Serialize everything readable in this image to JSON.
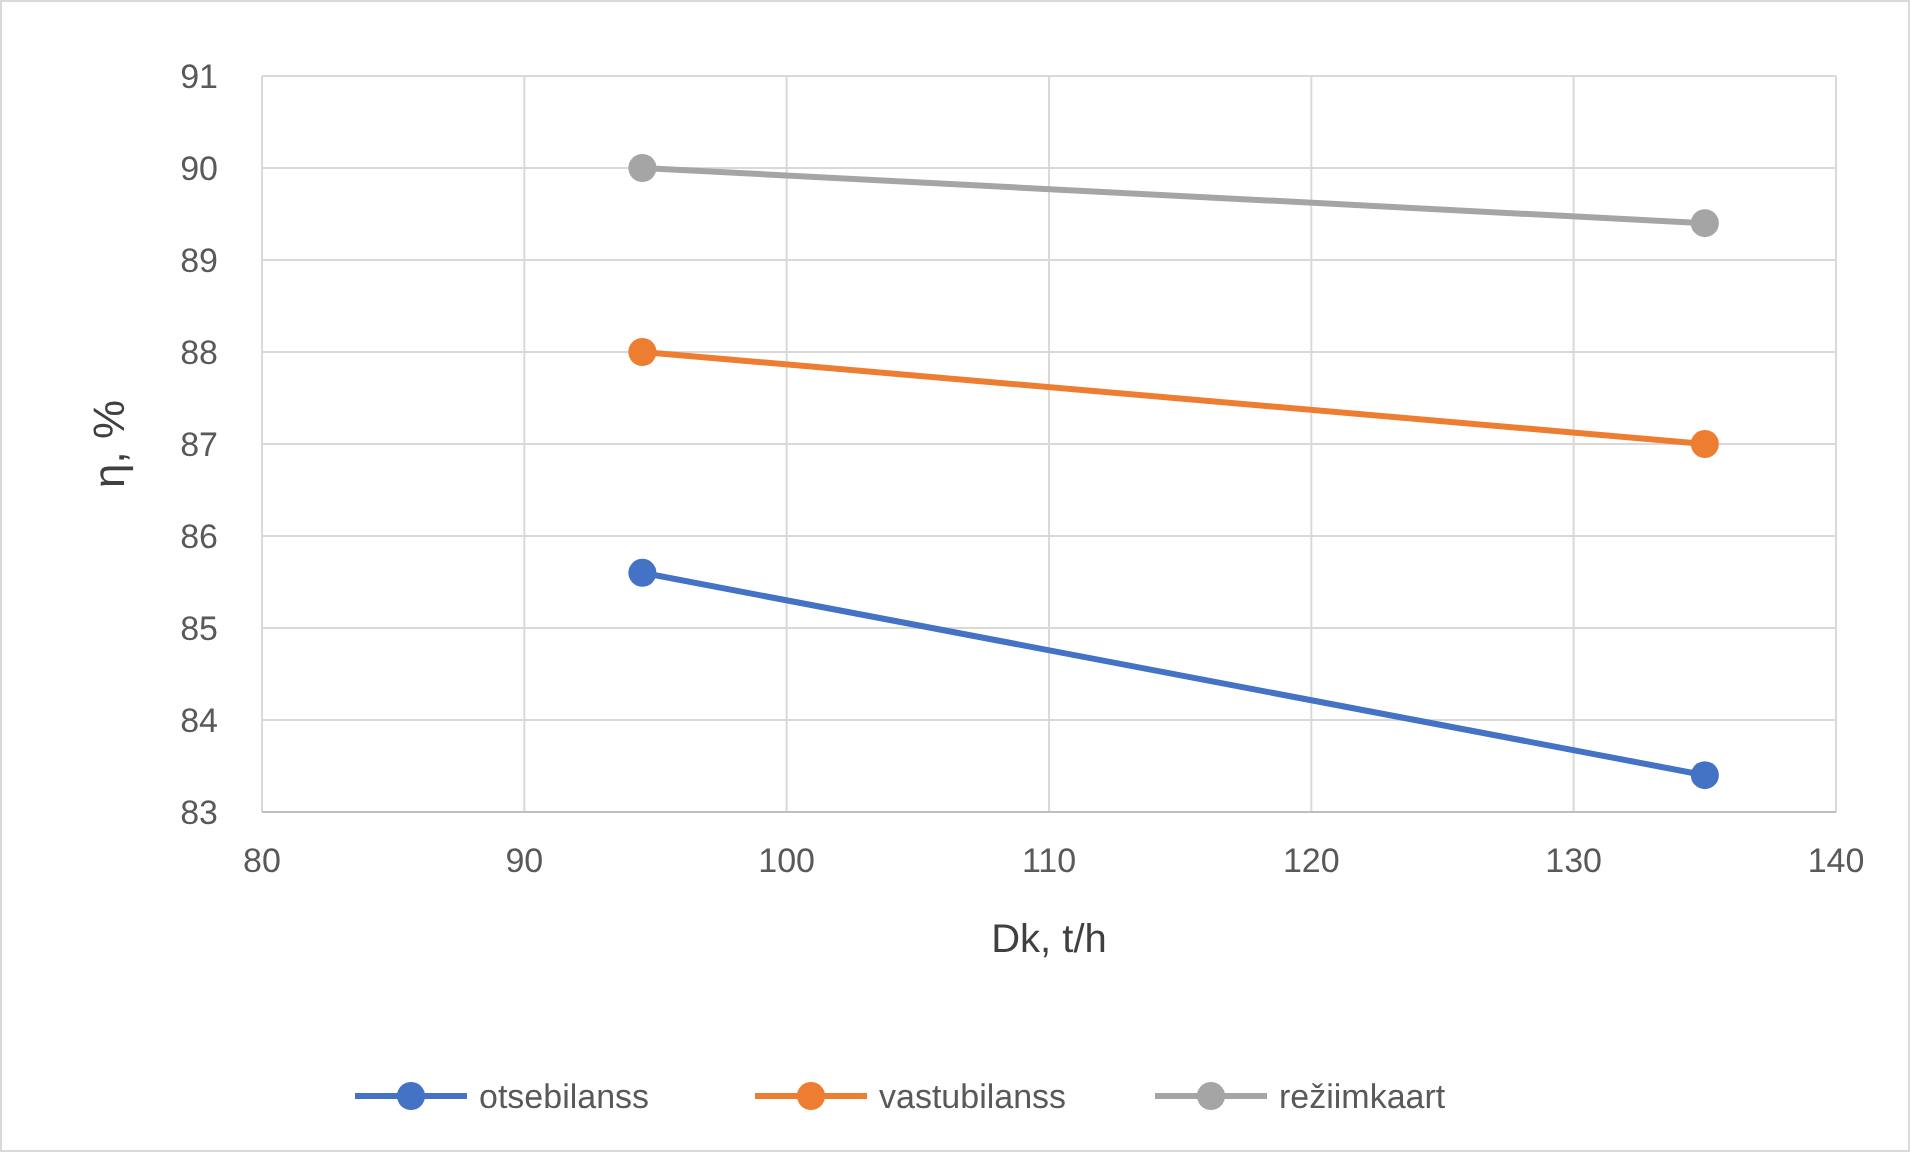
{
  "chart_data": {
    "type": "line",
    "xlabel": "Dk, t/h",
    "ylabel": "η, %",
    "x": [
      94.5,
      135
    ],
    "series": [
      {
        "name": "otsebilanss",
        "color": "#4472c4",
        "values": [
          85.6,
          83.4
        ]
      },
      {
        "name": "vastubilanss",
        "color": "#ed7d31",
        "values": [
          88,
          87
        ]
      },
      {
        "name": "režiimkaart",
        "color": "#a5a5a5",
        "values": [
          90,
          89.4
        ]
      }
    ],
    "xlim": [
      80,
      140
    ],
    "xticks": [
      80,
      90,
      100,
      110,
      120,
      130,
      140
    ],
    "ylim": [
      83,
      91
    ],
    "yticks": [
      83,
      84,
      85,
      86,
      87,
      88,
      89,
      90,
      91
    ],
    "grid": true,
    "legend": "bottom",
    "marker": "circle",
    "line_style": "solid"
  }
}
